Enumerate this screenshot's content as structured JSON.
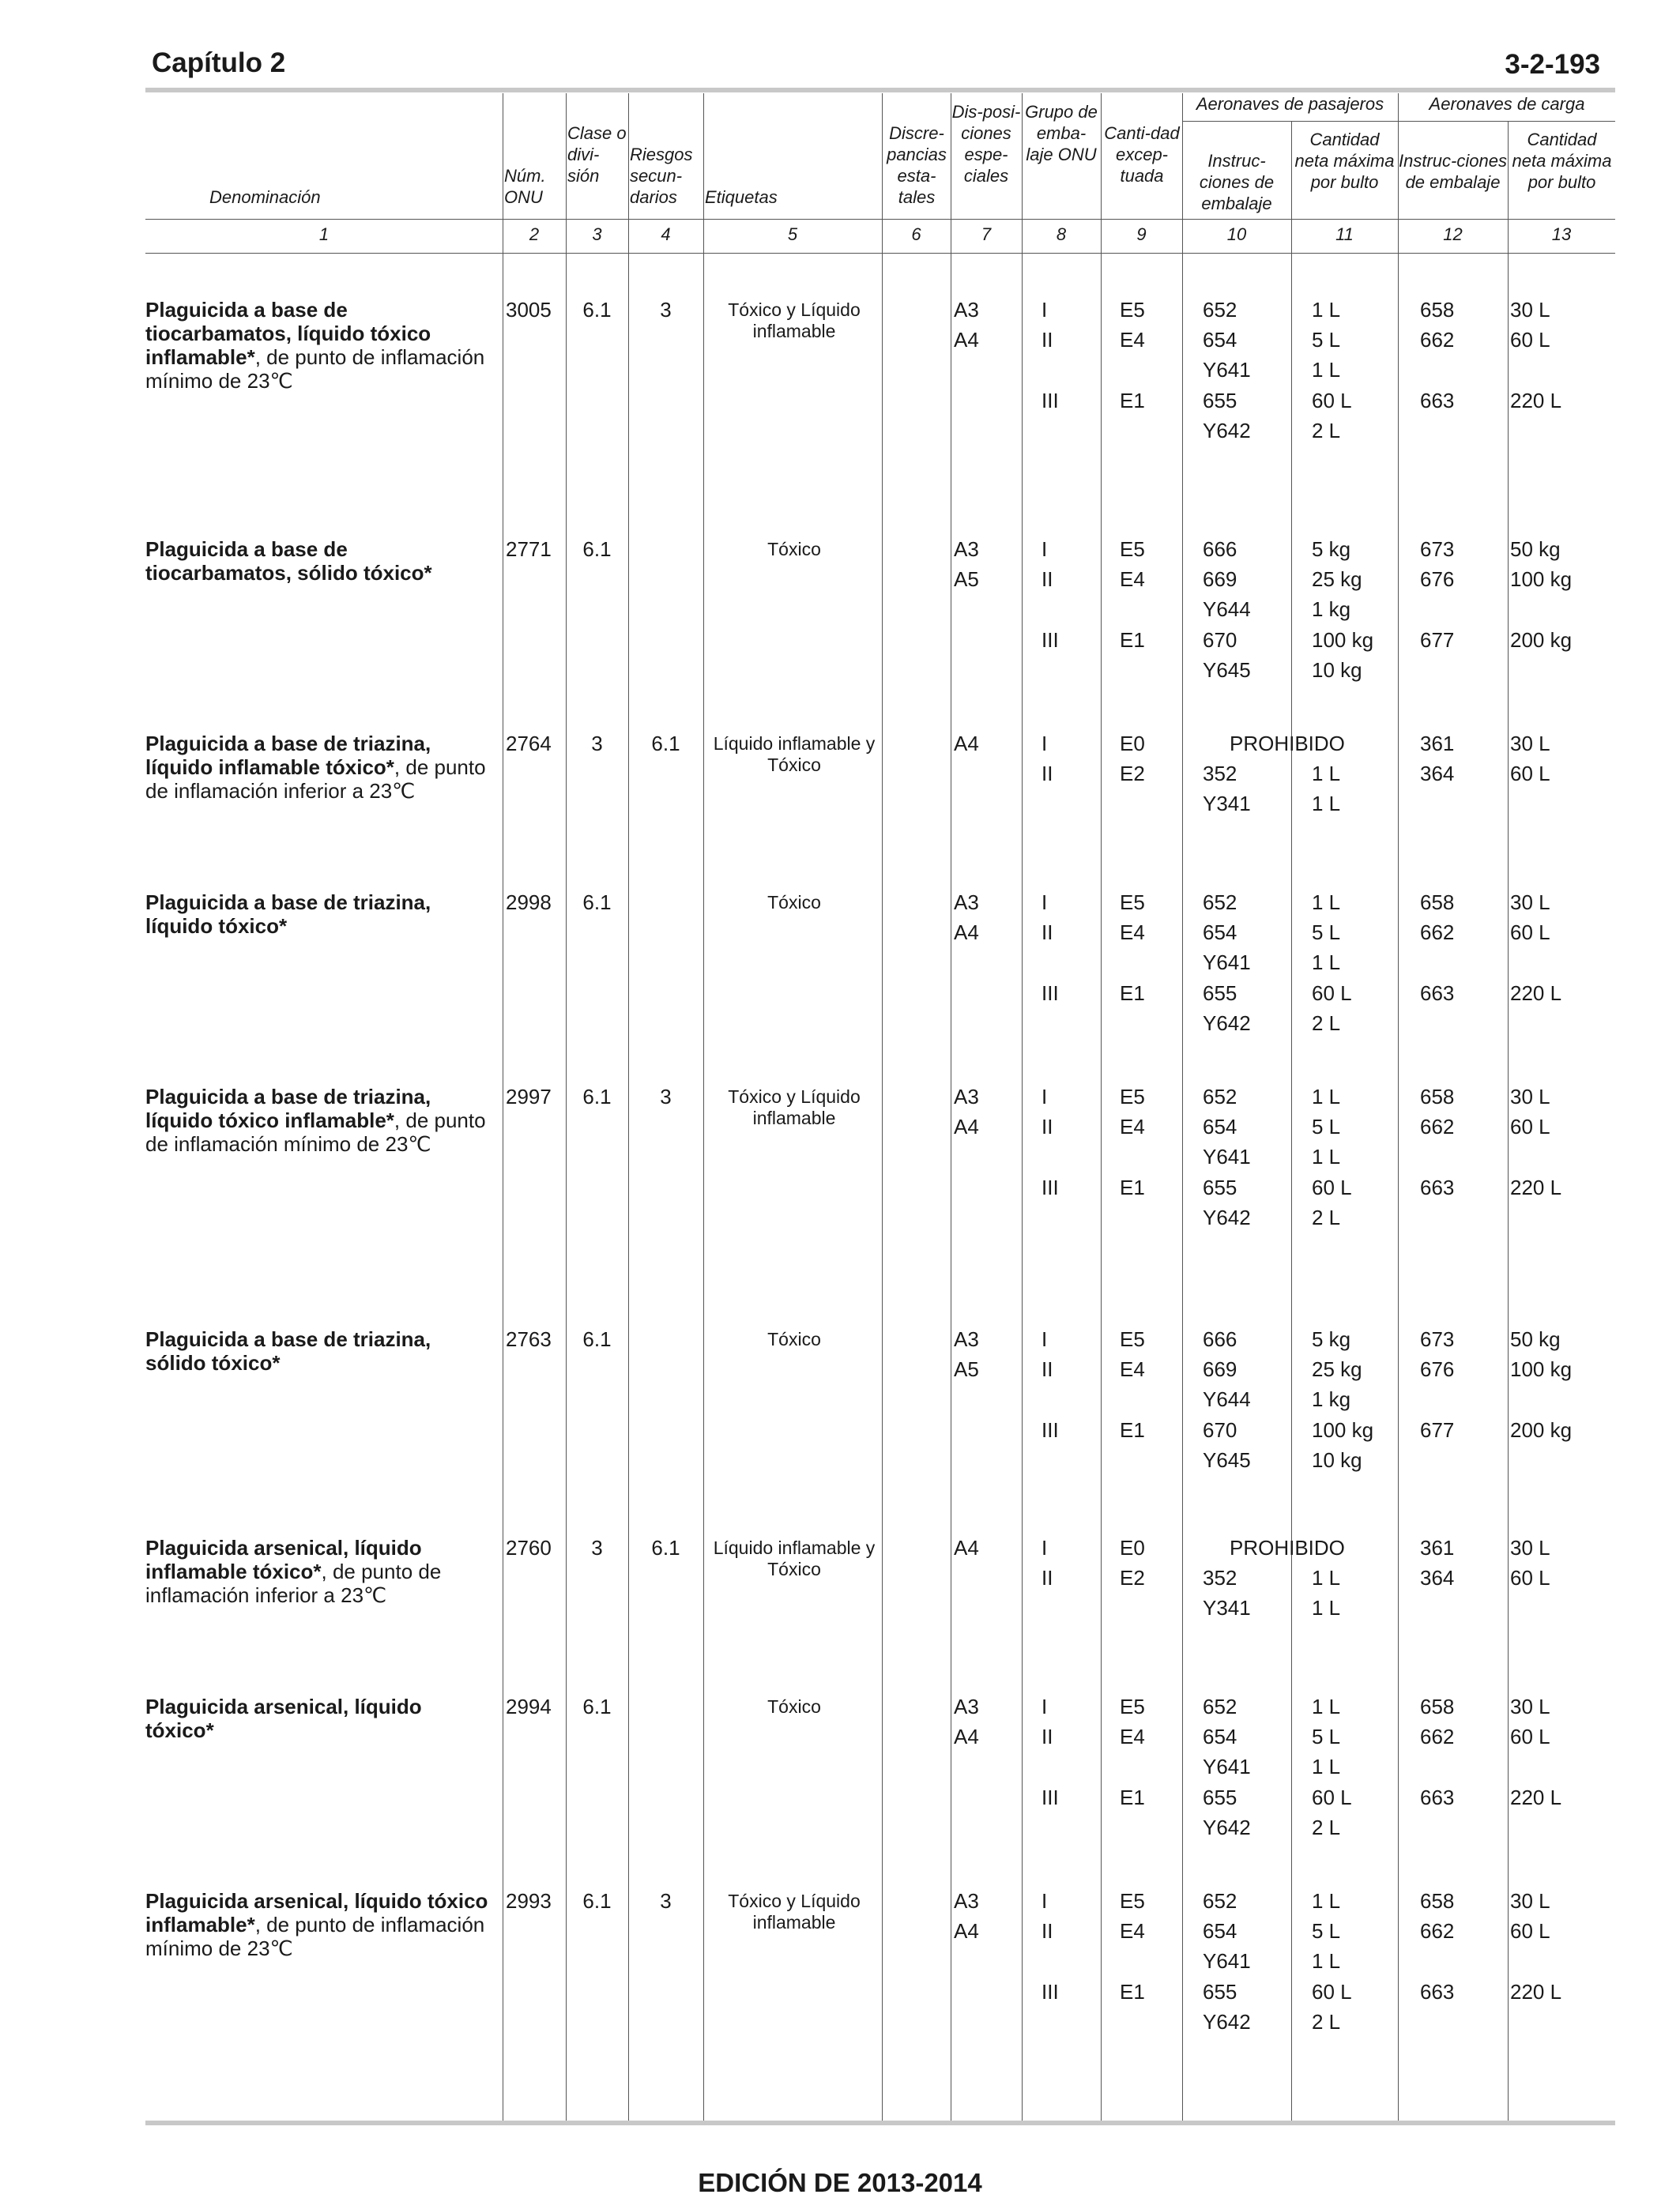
{
  "header": {
    "chapter": "Capítulo 2",
    "page": "3-2-193"
  },
  "footer": {
    "edition": "EDICIÓN DE 2013-2014"
  },
  "table_headers": {
    "h1": "Denominación",
    "h2": "Núm. ONU",
    "h3": "Clase o divi-sión",
    "h4": "Riesgos secun-darios",
    "h5": "Etiquetas",
    "h6": "Discre-pancias esta-tales",
    "h7": "Dis-posi-ciones espe-ciales",
    "h8": "Grupo de emba-laje ONU",
    "h9": "Canti-dad excep-tuada",
    "pax": "Aeronaves de pasajeros",
    "cargo": "Aeronaves de carga",
    "h10": "Instruc-ciones de embalaje",
    "h11": "Cantidad neta máxima por bulto",
    "h12": "Instruc-ciones de embalaje",
    "h13": "Cantidad neta máxima por bulto",
    "nums": [
      "1",
      "2",
      "3",
      "4",
      "5",
      "6",
      "7",
      "8",
      "9",
      "10",
      "11",
      "12",
      "13"
    ]
  },
  "entries": [
    {
      "name_bold": "Plaguicida a base de tiocarbamatos, líquido tóxico inflamable*",
      "name_rest": ", de punto de inflamación mínimo de 23℃",
      "un": "3005",
      "cls": "6.1",
      "sub": "3",
      "label": "Tóxico y Líquido inflamable",
      "sp": [
        "A3",
        "A4"
      ],
      "pg": [
        "I",
        "II",
        "",
        "III",
        ""
      ],
      "eq": [
        "E5",
        "E4",
        "",
        "E1",
        ""
      ],
      "pi_pax": [
        "652",
        "654",
        "Y641",
        "655",
        "Y642"
      ],
      "q_pax": [
        "1 L",
        "5 L",
        "1 L",
        "60 L",
        "2 L"
      ],
      "pi_cao": [
        "658",
        "662",
        "",
        "663",
        ""
      ],
      "q_cao": [
        "30 L",
        "60 L",
        "",
        "220 L",
        ""
      ]
    },
    {
      "name_bold": "Plaguicida a base de tiocarbamatos, sólido tóxico*",
      "name_rest": "",
      "un": "2771",
      "cls": "6.1",
      "sub": "",
      "label": "Tóxico",
      "sp": [
        "A3",
        "A5"
      ],
      "pg": [
        "I",
        "II",
        "",
        "III",
        ""
      ],
      "eq": [
        "E5",
        "E4",
        "",
        "E1",
        ""
      ],
      "pi_pax": [
        "666",
        "669",
        "Y644",
        "670",
        "Y645"
      ],
      "q_pax": [
        "5 kg",
        "25 kg",
        "1 kg",
        "100 kg",
        "10 kg"
      ],
      "pi_cao": [
        "673",
        "676",
        "",
        "677",
        ""
      ],
      "q_cao": [
        "50 kg",
        "100 kg",
        "",
        "200 kg",
        ""
      ]
    },
    {
      "name_bold": "Plaguicida a base de triazina, líquido inflamable tóxico*",
      "name_rest": ", de punto de inflamación inferior a 23℃",
      "un": "2764",
      "cls": "3",
      "sub": "6.1",
      "label": "Líquido inflamable y Tóxico",
      "sp": [
        "A4"
      ],
      "pg": [
        "I",
        "II",
        ""
      ],
      "eq": [
        "E0",
        "E2",
        ""
      ],
      "prohibited": "PROHIBIDO",
      "pi_pax": [
        "",
        "352",
        "Y341"
      ],
      "q_pax": [
        "",
        "1 L",
        "1 L"
      ],
      "pi_cao": [
        "361",
        "364",
        ""
      ],
      "q_cao": [
        "30 L",
        "60 L",
        ""
      ]
    },
    {
      "name_bold": "Plaguicida a base de triazina, líquido tóxico*",
      "name_rest": "",
      "un": "2998",
      "cls": "6.1",
      "sub": "",
      "label": "Tóxico",
      "sp": [
        "A3",
        "A4"
      ],
      "pg": [
        "I",
        "II",
        "",
        "III",
        ""
      ],
      "eq": [
        "E5",
        "E4",
        "",
        "E1",
        ""
      ],
      "pi_pax": [
        "652",
        "654",
        "Y641",
        "655",
        "Y642"
      ],
      "q_pax": [
        "1 L",
        "5 L",
        "1 L",
        "60 L",
        "2 L"
      ],
      "pi_cao": [
        "658",
        "662",
        "",
        "663",
        ""
      ],
      "q_cao": [
        "30 L",
        "60 L",
        "",
        "220 L",
        ""
      ]
    },
    {
      "name_bold": "Plaguicida a base de triazina, líquido tóxico inflamable*",
      "name_rest": ", de punto de inflamación mínimo de 23℃",
      "un": "2997",
      "cls": "6.1",
      "sub": "3",
      "label": "Tóxico y Líquido inflamable",
      "sp": [
        "A3",
        "A4"
      ],
      "pg": [
        "I",
        "II",
        "",
        "III",
        ""
      ],
      "eq": [
        "E5",
        "E4",
        "",
        "E1",
        ""
      ],
      "pi_pax": [
        "652",
        "654",
        "Y641",
        "655",
        "Y642"
      ],
      "q_pax": [
        "1 L",
        "5 L",
        "1 L",
        "60 L",
        "2 L"
      ],
      "pi_cao": [
        "658",
        "662",
        "",
        "663",
        ""
      ],
      "q_cao": [
        "30 L",
        "60 L",
        "",
        "220 L",
        ""
      ]
    },
    {
      "name_bold": "Plaguicida a base de triazina, sólido tóxico*",
      "name_rest": "",
      "un": "2763",
      "cls": "6.1",
      "sub": "",
      "label": "Tóxico",
      "sp": [
        "A3",
        "A5"
      ],
      "pg": [
        "I",
        "II",
        "",
        "III",
        ""
      ],
      "eq": [
        "E5",
        "E4",
        "",
        "E1",
        ""
      ],
      "pi_pax": [
        "666",
        "669",
        "Y644",
        "670",
        "Y645"
      ],
      "q_pax": [
        "5 kg",
        "25 kg",
        "1 kg",
        "100 kg",
        "10 kg"
      ],
      "pi_cao": [
        "673",
        "676",
        "",
        "677",
        ""
      ],
      "q_cao": [
        "50 kg",
        "100 kg",
        "",
        "200 kg",
        ""
      ]
    },
    {
      "name_bold": "Plaguicida arsenical, líquido inflamable tóxico*",
      "name_rest": ", de punto de inflamación inferior a 23℃",
      "un": "2760",
      "cls": "3",
      "sub": "6.1",
      "label": "Líquido inflamable y Tóxico",
      "sp": [
        "A4"
      ],
      "pg": [
        "I",
        "II",
        ""
      ],
      "eq": [
        "E0",
        "E2",
        ""
      ],
      "prohibited": "PROHIBIDO",
      "pi_pax": [
        "",
        "352",
        "Y341"
      ],
      "q_pax": [
        "",
        "1 L",
        "1 L"
      ],
      "pi_cao": [
        "361",
        "364",
        ""
      ],
      "q_cao": [
        "30 L",
        "60 L",
        ""
      ]
    },
    {
      "name_bold": "Plaguicida arsenical, líquido tóxico*",
      "name_rest": "",
      "un": "2994",
      "cls": "6.1",
      "sub": "",
      "label": "Tóxico",
      "sp": [
        "A3",
        "A4"
      ],
      "pg": [
        "I",
        "II",
        "",
        "III",
        ""
      ],
      "eq": [
        "E5",
        "E4",
        "",
        "E1",
        ""
      ],
      "pi_pax": [
        "652",
        "654",
        "Y641",
        "655",
        "Y642"
      ],
      "q_pax": [
        "1 L",
        "5 L",
        "1 L",
        "60 L",
        "2 L"
      ],
      "pi_cao": [
        "658",
        "662",
        "",
        "663",
        ""
      ],
      "q_cao": [
        "30 L",
        "60 L",
        "",
        "220 L",
        ""
      ]
    },
    {
      "name_bold": "Plaguicida arsenical, líquido tóxico inflamable*",
      "name_rest": ", de punto de inflamación mínimo de 23℃",
      "un": "2993",
      "cls": "6.1",
      "sub": "3",
      "label": "Tóxico y Líquido inflamable",
      "sp": [
        "A3",
        "A4"
      ],
      "pg": [
        "I",
        "II",
        "",
        "III",
        ""
      ],
      "eq": [
        "E5",
        "E4",
        "",
        "E1",
        ""
      ],
      "pi_pax": [
        "652",
        "654",
        "Y641",
        "655",
        "Y642"
      ],
      "q_pax": [
        "1 L",
        "5 L",
        "1 L",
        "60 L",
        "2 L"
      ],
      "pi_cao": [
        "658",
        "662",
        "",
        "663",
        ""
      ],
      "q_cao": [
        "30 L",
        "60 L",
        "",
        "220 L",
        ""
      ]
    }
  ]
}
